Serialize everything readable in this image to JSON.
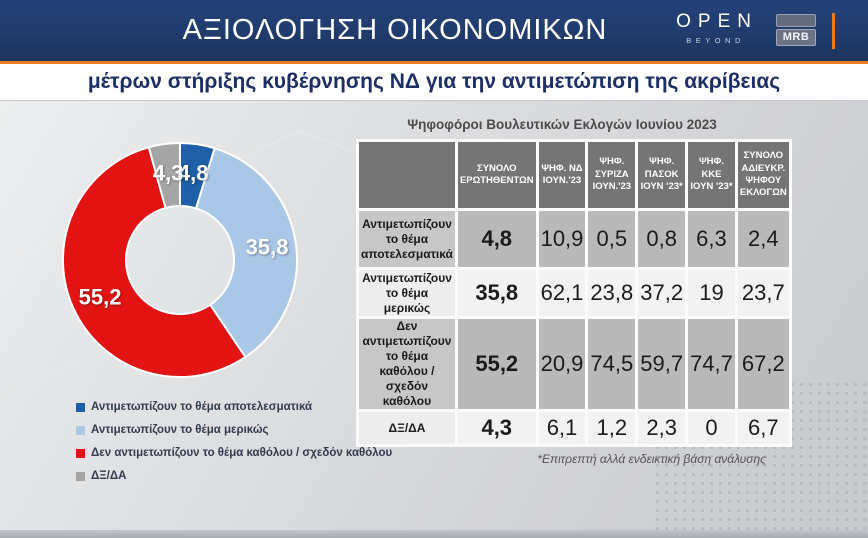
{
  "header": {
    "title": "ΑΞΙΟΛΟΓΗΣΗ ΟΙΚΟΝΟΜΙΚΩΝ",
    "open_logo": {
      "word": "OPEN",
      "sub": "BEYOND"
    },
    "mrb_logo": "MRB"
  },
  "subtitle": "μέτρων στήριξης κυβέρνησης ΝΔ για την αντιμετώπιση της ακρίβειας",
  "chart_data": [
    {
      "type": "pie",
      "donut": true,
      "start_angle_deg": 0,
      "clockwise": true,
      "slices": [
        {
          "label": "Αντιμετωπίζουν το θέμα αποτελεσματικά",
          "value": 4.8,
          "display": "4,8",
          "color": "#1f5fa8"
        },
        {
          "label": "Αντιμετωπίζουν το θέμα μερικώς",
          "value": 35.8,
          "display": "35,8",
          "color": "#a9c7e7"
        },
        {
          "label": "Δεν αντιμετωπίζουν το θέμα καθόλου / σχεδόν καθόλου",
          "value": 55.2,
          "display": "55,2",
          "color": "#e11313"
        },
        {
          "label": "ΔΞ/ΔΑ",
          "value": 4.3,
          "display": "4,3",
          "color": "#a5a5a5"
        }
      ],
      "legend_position": "below-left"
    },
    {
      "type": "table",
      "title": "Ψηφοφόροι Βουλευτικών Εκλογών Ιουνίου 2023",
      "columns": [
        "ΣΥΝΟΛΟ ΕΡΩΤΗΘΕΝΤΩΝ",
        "ΨΗΦ. ΝΔ ΙΟΥΝ.'23",
        "ΨΗΦ. ΣΥΡΙΖΑ ΙΟΥΝ.'23",
        "ΨΗΦ. ΠΑΣΟΚ ΙΟΥΝ '23*",
        "ΨΗΦ. ΚΚΕ ΙΟΥΝ '23*",
        "ΣΥΝΟΛΟ ΑΔΙΕΥΚΡ. ΨΗΦΟΥ ΕΚΛΟΓΩΝ"
      ],
      "rows": [
        {
          "label": "Αντιμετωπίζουν το θέμα αποτελεσματικά",
          "values": [
            "4,8",
            "10,9",
            "0,5",
            "0,8",
            "6,3",
            "2,4"
          ]
        },
        {
          "label": "Αντιμετωπίζουν το θέμα μερικώς",
          "values": [
            "35,8",
            "62,1",
            "23,8",
            "37,2",
            "19",
            "23,7"
          ]
        },
        {
          "label": "Δεν αντιμετωπίζουν το θέμα καθόλου / σχεδόν καθόλου",
          "values": [
            "55,2",
            "20,9",
            "74,5",
            "59,7",
            "74,7",
            "67,2"
          ]
        },
        {
          "label": "ΔΞ/ΔΑ",
          "values": [
            "4,3",
            "6,1",
            "1,2",
            "2,3",
            "0",
            "6,7"
          ]
        }
      ],
      "footnote": "*Επιτρεπτή αλλά ενδεικτική βάση ανάλυσης"
    }
  ]
}
